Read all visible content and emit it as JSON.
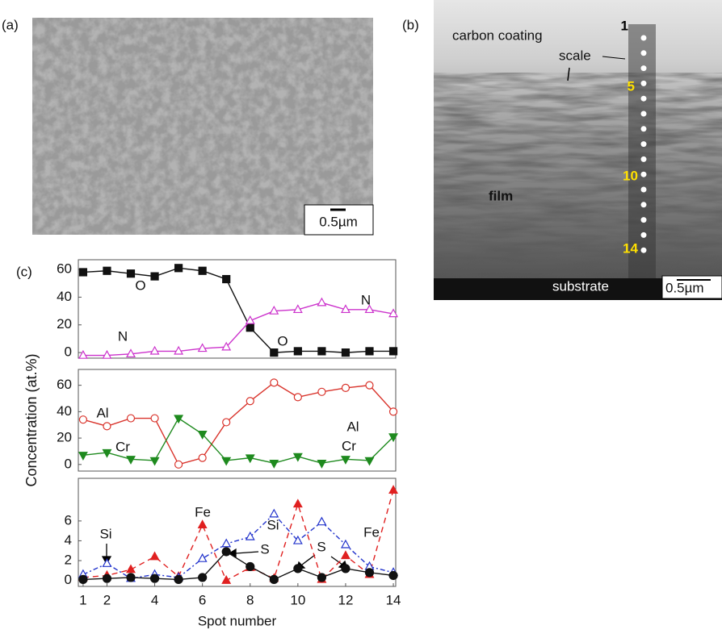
{
  "panel_a": {
    "label": "(a)",
    "scale_bar": "0.5µm"
  },
  "panel_b": {
    "label": "(b)",
    "annotations": [
      "carbon coating",
      "scale",
      "film",
      "substrate"
    ],
    "spot_labels": [
      "1",
      "5",
      "10",
      "14"
    ],
    "scale_bar": "0.5µm"
  },
  "chart_data": [
    {
      "type": "line",
      "label": "(c)",
      "x": [
        1,
        2,
        3,
        4,
        5,
        6,
        7,
        8,
        9,
        10,
        11,
        12,
        13,
        14
      ],
      "xlim": [
        0.8,
        14.1
      ],
      "ylim": [
        -4,
        67
      ],
      "yticks": [
        0,
        20,
        40,
        60
      ],
      "series": [
        {
          "name": "O",
          "color": "#111111",
          "marker": "square",
          "filled": true,
          "dash": "solid",
          "values": [
            58,
            59,
            57,
            55,
            61,
            59,
            53,
            18,
            0,
            1,
            1,
            0,
            1,
            1
          ]
        },
        {
          "name": "N",
          "color": "#cc33cc",
          "marker": "triangle",
          "filled": false,
          "dash": "solid",
          "values": [
            -2,
            -2,
            -1,
            1,
            1,
            3,
            4,
            23,
            30,
            31,
            36,
            31,
            31,
            28
          ]
        }
      ],
      "annotations": [
        "O",
        "N"
      ]
    },
    {
      "type": "line",
      "ylabel": "Concentration (at.%)",
      "x": [
        1,
        2,
        3,
        4,
        5,
        6,
        7,
        8,
        9,
        10,
        11,
        12,
        13,
        14
      ],
      "xlim": [
        0.8,
        14.1
      ],
      "ylim": [
        -5,
        72
      ],
      "yticks": [
        0,
        20,
        40,
        60
      ],
      "series": [
        {
          "name": "Al",
          "color": "#d9332b",
          "marker": "circle",
          "filled": false,
          "dash": "solid",
          "values": [
            34,
            29,
            35,
            35,
            0,
            5,
            32,
            48,
            62,
            51,
            55,
            58,
            60,
            40
          ]
        },
        {
          "name": "Cr",
          "color": "#1e8a1e",
          "marker": "triangle-down",
          "filled": true,
          "dash": "solid",
          "values": [
            7,
            9,
            4,
            3,
            35,
            23,
            3,
            5,
            1,
            6,
            1,
            4,
            3,
            21
          ]
        }
      ],
      "annotations": [
        "Al",
        "Cr"
      ]
    },
    {
      "type": "line",
      "xlabel": "Spot number",
      "x": [
        1,
        2,
        3,
        4,
        5,
        6,
        7,
        8,
        9,
        10,
        11,
        12,
        13,
        14
      ],
      "xlim": [
        0.8,
        14.1
      ],
      "ylim": [
        -0.6,
        10.3
      ],
      "yticks": [
        0,
        2,
        4,
        6
      ],
      "xticks": [
        1,
        2,
        4,
        6,
        8,
        10,
        12,
        14
      ],
      "series": [
        {
          "name": "Fe",
          "color": "#e02020",
          "marker": "triangle",
          "filled": true,
          "dash": "dashed",
          "values": [
            0.3,
            0.5,
            1.1,
            2.4,
            0.4,
            5.6,
            0,
            1.3,
            0.2,
            7.7,
            0.1,
            2.5,
            0.6,
            9.1
          ]
        },
        {
          "name": "Si",
          "color": "#2233cc",
          "marker": "triangle",
          "filled": false,
          "dash": "dashdot",
          "values": [
            0.6,
            1.7,
            0.2,
            0.6,
            0.3,
            2.2,
            3.7,
            4.4,
            6.7,
            4.0,
            5.9,
            3.6,
            1.4,
            0.8
          ]
        },
        {
          "name": "S",
          "color": "#111111",
          "marker": "circle",
          "filled": true,
          "dash": "solid",
          "values": [
            0.1,
            0.2,
            0.3,
            0.2,
            0.1,
            0.3,
            2.9,
            1.4,
            0.1,
            1.2,
            0.3,
            1.2,
            0.8,
            0.5
          ]
        }
      ],
      "annotations": [
        "Si",
        "Fe",
        "S"
      ]
    }
  ]
}
